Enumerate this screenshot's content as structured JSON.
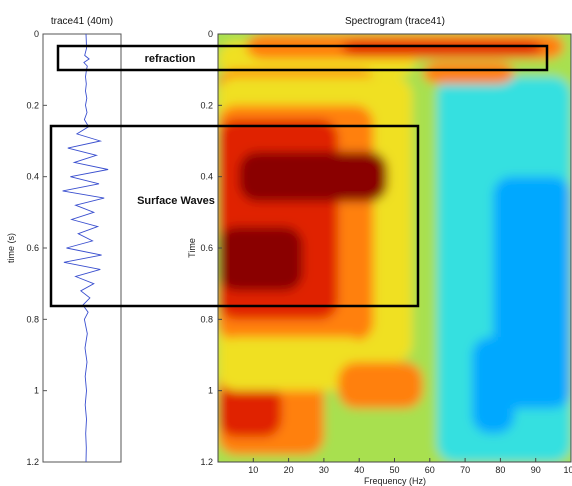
{
  "chart_data": [
    {
      "type": "line",
      "title": "trace41 (40m)",
      "ylabel": "time (s)",
      "ylim": [
        0,
        1.2
      ],
      "yticks": [
        "0",
        "0.2",
        "0.4",
        "0.6",
        "0.8",
        "1",
        "1.2"
      ],
      "orientation": "vertical",
      "series": [
        {
          "color": "#3a4fcf",
          "t": [
            0,
            0.02,
            0.04,
            0.06,
            0.07,
            0.08,
            0.09,
            0.1,
            0.12,
            0.14,
            0.16,
            0.18,
            0.2,
            0.22,
            0.24,
            0.26,
            0.28,
            0.3,
            0.32,
            0.34,
            0.36,
            0.38,
            0.4,
            0.42,
            0.44,
            0.46,
            0.48,
            0.5,
            0.52,
            0.54,
            0.56,
            0.58,
            0.6,
            0.62,
            0.64,
            0.66,
            0.68,
            0.7,
            0.72,
            0.74,
            0.76,
            0.78,
            0.8,
            0.84,
            0.88,
            0.92,
            0.96,
            1.0,
            1.04,
            1.08,
            1.12,
            1.16,
            1.2
          ],
          "amp": [
            0,
            0.01,
            0.02,
            -0.05,
            0.12,
            -0.08,
            0.05,
            0.02,
            -0.02,
            0.01,
            -0.02,
            0.03,
            -0.02,
            0.04,
            -0.06,
            0.1,
            -0.35,
            0.55,
            -0.7,
            0.4,
            -0.45,
            0.85,
            -0.6,
            0.5,
            -0.9,
            0.7,
            -0.4,
            0.3,
            -0.55,
            0.45,
            -0.3,
            0.25,
            -0.75,
            0.6,
            -0.85,
            0.55,
            -0.4,
            0.3,
            -0.2,
            0.15,
            -0.12,
            0.08,
            -0.06,
            0.05,
            -0.04,
            0.04,
            -0.03,
            0.02,
            -0.03,
            0.02,
            -0.01,
            0.01,
            0
          ]
        }
      ]
    },
    {
      "type": "heatmap",
      "title": "Spectrogram (trace41)",
      "xlabel": "Frequency (Hz)",
      "ylabel": "Time",
      "xlim": [
        0,
        100
      ],
      "ylim": [
        0,
        1.2
      ],
      "xticks": [
        "10",
        "20",
        "30",
        "40",
        "50",
        "60",
        "70",
        "80",
        "90",
        "100"
      ],
      "yticks": [
        "0",
        "0.2",
        "0.4",
        "0.6",
        "0.8",
        "1",
        "1.2"
      ],
      "colorscale": [
        "#00a8ff",
        "#34e0e0",
        "#a8e050",
        "#f0e020",
        "#ff8010",
        "#e02000",
        "#8a0000"
      ],
      "annotations": [
        {
          "label": "refraction",
          "x_range": [
            -45,
            93
          ],
          "y_range": [
            0.04,
            0.11
          ]
        },
        {
          "label": "Surface Waves",
          "x_range": [
            -47,
            56
          ],
          "y_range": [
            0.27,
            0.79
          ]
        }
      ]
    }
  ]
}
